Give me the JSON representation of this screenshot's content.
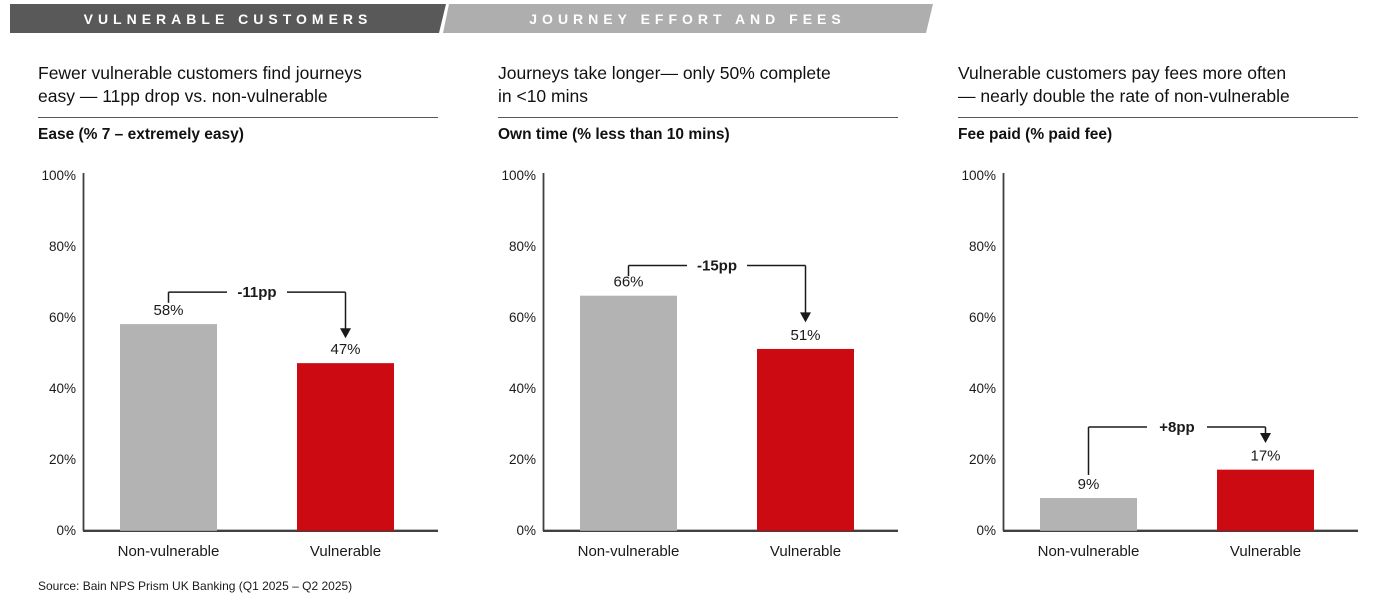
{
  "header": {
    "tab1": "VULNERABLE CUSTOMERS",
    "tab2": "JOURNEY EFFORT AND FEES",
    "tab1_bg": "#595959",
    "tab2_bg": "#aeaeae"
  },
  "panels": [
    {
      "title_line1": "Fewer vulnerable customers find journeys",
      "title_line2": "easy — 11pp drop vs. non-vulnerable",
      "subtitle": "Ease (% 7 – extremely easy)"
    },
    {
      "title_line1": "Journeys take longer— only 50% complete",
      "title_line2": "in <10 mins",
      "subtitle": "Own time (% less than 10 mins)"
    },
    {
      "title_line1": "Vulnerable customers pay fees more often",
      "title_line2": "— nearly double the rate of non-vulnerable",
      "subtitle": "Fee paid (% paid fee)"
    }
  ],
  "source": "Source: Bain NPS Prism UK Banking (Q1 2025 – Q2 2025)",
  "colors": {
    "non_vulnerable_bar": "#b3b3b3",
    "vulnerable_bar": "#cc0a11",
    "axis": "#404040",
    "text": "#1a1a1a"
  },
  "chart_data": [
    {
      "type": "bar",
      "title": "Ease (% 7 – extremely easy)",
      "categories": [
        "Non-vulnerable",
        "Vulnerable"
      ],
      "values": [
        58,
        47
      ],
      "value_labels": [
        "58%",
        "47%"
      ],
      "xlabel": "",
      "ylabel": "",
      "ylim": [
        0,
        100
      ],
      "yticks": [
        "0%",
        "20%",
        "40%",
        "60%",
        "80%",
        "100%"
      ],
      "grid": false,
      "legend": "none",
      "annotation": {
        "label": "-11pp",
        "bracket_pct": 67,
        "left_end_pct": 64,
        "arrow_tip_pct": 54
      }
    },
    {
      "type": "bar",
      "title": "Own time (% less than 10 mins)",
      "categories": [
        "Non-vulnerable",
        "Vulnerable"
      ],
      "values": [
        66,
        51
      ],
      "value_labels": [
        "66%",
        "51%"
      ],
      "xlabel": "",
      "ylabel": "",
      "ylim": [
        0,
        100
      ],
      "yticks": [
        "0%",
        "20%",
        "40%",
        "60%",
        "80%",
        "100%"
      ],
      "grid": false,
      "legend": "none",
      "annotation": {
        "label": "-15pp",
        "bracket_pct": 74.5,
        "left_end_pct": 71.5,
        "arrow_tip_pct": 58.5
      }
    },
    {
      "type": "bar",
      "title": "Fee paid (% paid fee)",
      "categories": [
        "Non-vulnerable",
        "Vulnerable"
      ],
      "values": [
        9,
        17
      ],
      "value_labels": [
        "9%",
        "17%"
      ],
      "xlabel": "",
      "ylabel": "",
      "ylim": [
        0,
        100
      ],
      "yticks": [
        "0%",
        "20%",
        "40%",
        "60%",
        "80%",
        "100%"
      ],
      "grid": false,
      "legend": "none",
      "annotation": {
        "label": "+8pp",
        "bracket_pct": 29,
        "left_end_pct": 15.5,
        "arrow_tip_pct": 24.5
      }
    }
  ]
}
